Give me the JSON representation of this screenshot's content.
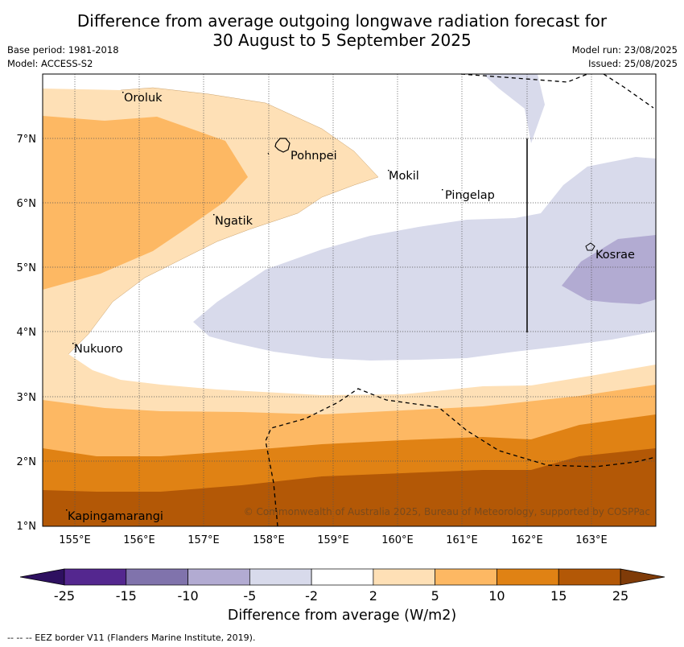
{
  "title": {
    "line1": "Difference from average outgoing longwave radiation forecast for",
    "line2": "30 August to 5 September 2025"
  },
  "meta": {
    "base_period": "Base period: 1981-2018",
    "model": "Model: ACCESS-S2",
    "model_run": "Model run: 23/08/2025",
    "issued": "Issued: 25/08/2025"
  },
  "map": {
    "lon_ticks": [
      "155°E",
      "156°E",
      "157°E",
      "158°E",
      "159°E",
      "160°E",
      "161°E",
      "162°E",
      "163°E"
    ],
    "lat_ticks": [
      "7°N",
      "6°N",
      "5°N",
      "4°N",
      "3°N",
      "2°N",
      "1°N"
    ],
    "places": [
      "Oroluk",
      "Pohnpei",
      "Mokil",
      "Pingelap",
      "Ngatik",
      "Kosrae",
      "Nukuoro",
      "Kapingamarangi"
    ],
    "copyright": "© Commonwealth of Australia 2025, Bureau of Meteorology, supported by COSPPac"
  },
  "legend": {
    "bins": [
      "-25",
      "-15",
      "-10",
      "-5",
      "-2",
      "2",
      "5",
      "10",
      "15",
      "25"
    ],
    "colors": [
      "#2e1060",
      "#54278f",
      "#8073ac",
      "#b2abd2",
      "#d8daeb",
      "#ffffff",
      "#fee0b6",
      "#fdb863",
      "#e08214",
      "#b35806",
      "#7f3b08"
    ],
    "title": "Difference from average (W/m2)"
  },
  "footer": "--  --  -- EEZ border V11 (Flanders Marine Institute, 2019)."
}
